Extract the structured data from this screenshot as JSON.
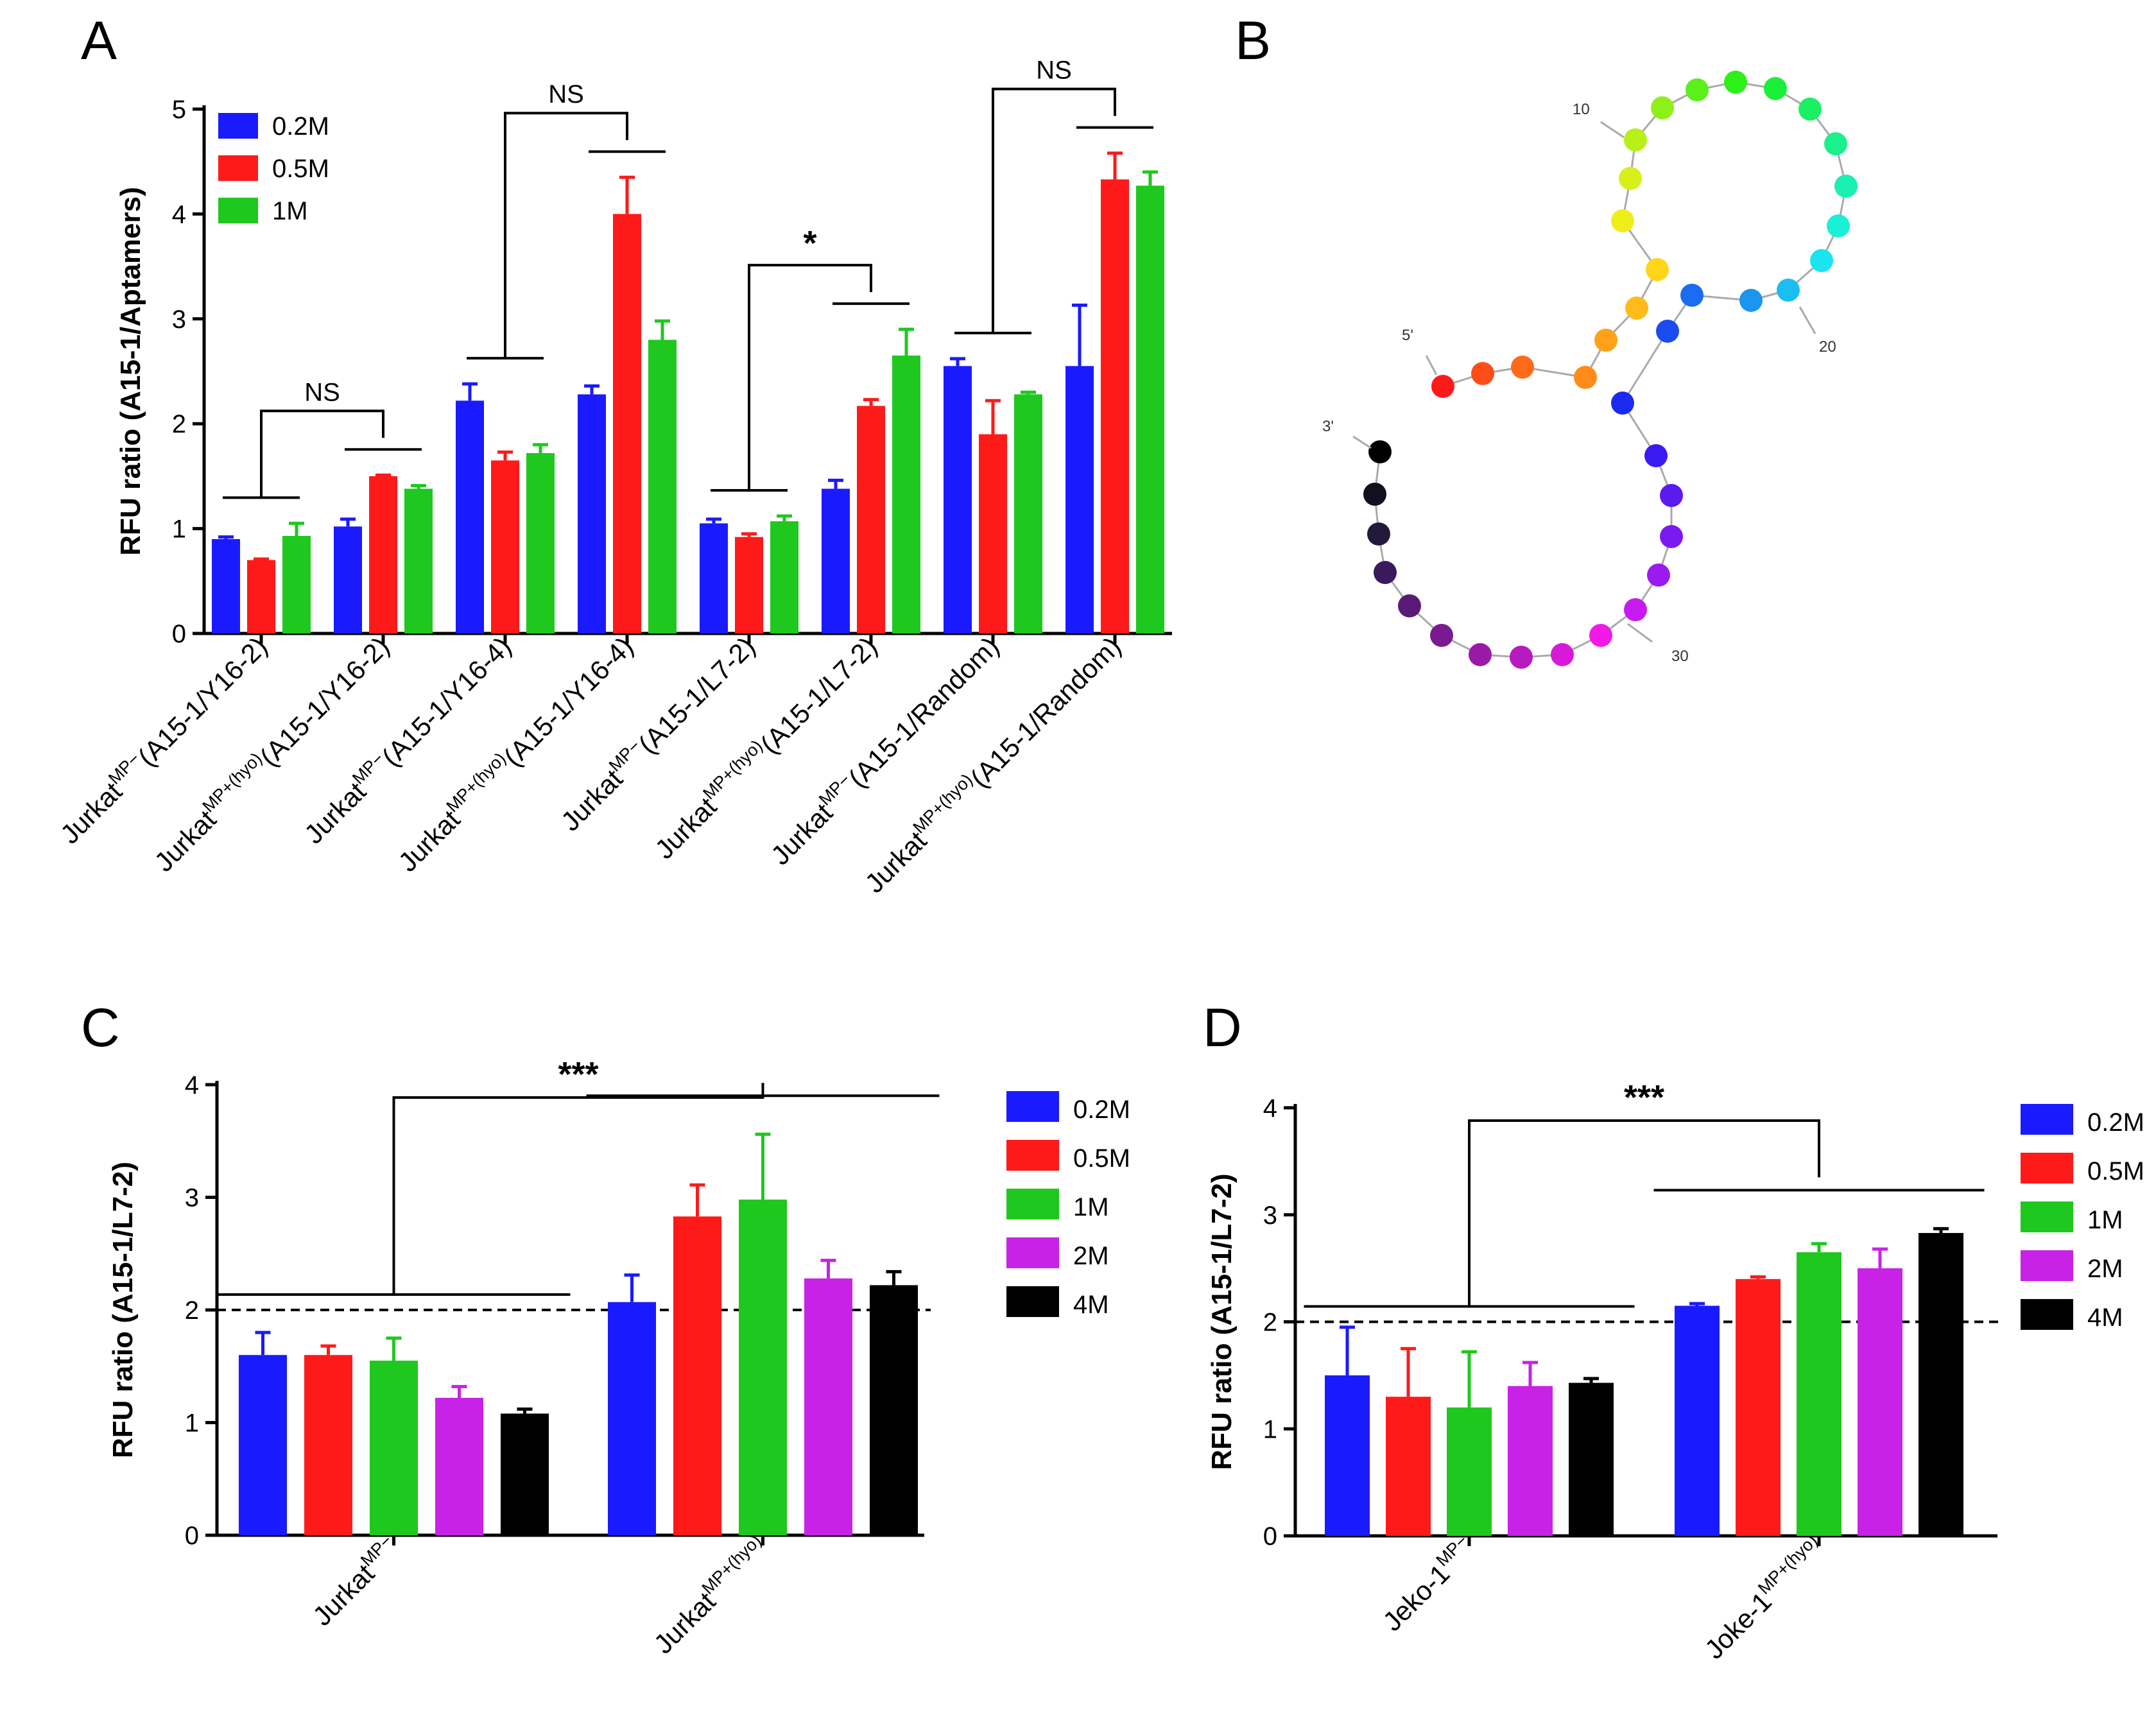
{
  "colors": {
    "blue": "#1a1aff",
    "red": "#ff1a1a",
    "green": "#1ec81e",
    "purple": "#c822e6",
    "black": "#000000"
  },
  "panels": {
    "A": {
      "letter": "A"
    },
    "B": {
      "letter": "B"
    },
    "C": {
      "letter": "C"
    },
    "D": {
      "letter": "D"
    }
  },
  "chart_data": [
    {
      "id": "A",
      "type": "bar",
      "ylabel": "RFU ratio (A15-1/Aptamers)",
      "ylim": [
        0,
        5
      ],
      "yticks": [
        0,
        1,
        2,
        3,
        4,
        5
      ],
      "legend": {
        "placement": "top-left"
      },
      "categories": [
        {
          "base": "Jurkat",
          "sup": "MP−",
          "suffix": "(A15-1/Y16-2)"
        },
        {
          "base": "Jurkat",
          "sup": "MP+(hyo)",
          "suffix": "(A15-1/Y16-2)"
        },
        {
          "base": "Jurkat",
          "sup": "MP−",
          "suffix": "(A15-1/Y16-4)"
        },
        {
          "base": "Jurkat",
          "sup": "MP+(hyo)",
          "suffix": "(A15-1/Y16-4)"
        },
        {
          "base": "Jurkat",
          "sup": "MP−",
          "suffix": "(A15-1/L7-2)"
        },
        {
          "base": "Jurkat",
          "sup": "MP+(hyo)",
          "suffix": "(A15-1/L7-2)"
        },
        {
          "base": "Jurkat",
          "sup": "MP−",
          "suffix": "(A15-1/Random)"
        },
        {
          "base": "Jurkat",
          "sup": "MP+(hyo)",
          "suffix": "(A15-1/Random)"
        }
      ],
      "series": [
        {
          "name": "0.2M",
          "color": "blue",
          "values": [
            0.9,
            1.02,
            2.22,
            2.28,
            1.05,
            1.38,
            2.55,
            2.55
          ],
          "errors": [
            0.02,
            0.07,
            0.16,
            0.08,
            0.04,
            0.08,
            0.07,
            0.58
          ]
        },
        {
          "name": "0.5M",
          "color": "red",
          "values": [
            0.7,
            1.5,
            1.65,
            4.0,
            0.92,
            2.17,
            1.9,
            4.33
          ],
          "errors": [
            0.01,
            0.01,
            0.08,
            0.35,
            0.03,
            0.06,
            0.32,
            0.25
          ]
        },
        {
          "name": "1M",
          "color": "green",
          "values": [
            0.93,
            1.38,
            1.72,
            2.8,
            1.07,
            2.65,
            2.28,
            4.27
          ],
          "errors": [
            0.12,
            0.03,
            0.08,
            0.18,
            0.05,
            0.25,
            0.02,
            0.13
          ]
        }
      ],
      "significance": [
        {
          "label": "NS",
          "groups": [
            0,
            1
          ]
        },
        {
          "label": "NS",
          "groups": [
            2,
            3
          ]
        },
        {
          "label": "*",
          "groups": [
            4,
            5
          ]
        },
        {
          "label": "NS",
          "groups": [
            6,
            7
          ]
        }
      ]
    },
    {
      "id": "C",
      "type": "bar",
      "ylabel": "RFU ratio (A15-1/L7-2)",
      "ylim": [
        0,
        4
      ],
      "yticks": [
        0,
        1,
        2,
        3,
        4
      ],
      "threshold": 2,
      "legend": {
        "placement": "right"
      },
      "categories": [
        {
          "base": "Jurkat",
          "sup": "MP−",
          "suffix": ""
        },
        {
          "base": "Jurkat",
          "sup": "MP+(hyo)",
          "suffix": ""
        }
      ],
      "series": [
        {
          "name": "0.2M",
          "color": "blue",
          "values": [
            1.6,
            2.07
          ],
          "errors": [
            0.2,
            0.24
          ]
        },
        {
          "name": "0.5M",
          "color": "red",
          "values": [
            1.6,
            2.83
          ],
          "errors": [
            0.08,
            0.28
          ]
        },
        {
          "name": "1M",
          "color": "green",
          "values": [
            1.55,
            2.98
          ],
          "errors": [
            0.2,
            0.58
          ]
        },
        {
          "name": "2M",
          "color": "purple",
          "values": [
            1.22,
            2.28
          ],
          "errors": [
            0.1,
            0.16
          ]
        },
        {
          "name": "4M",
          "color": "black",
          "values": [
            1.08,
            2.22
          ],
          "errors": [
            0.04,
            0.12
          ]
        }
      ],
      "significance": [
        {
          "label": "***",
          "groups": [
            0,
            1
          ]
        }
      ]
    },
    {
      "id": "D",
      "type": "bar",
      "ylabel": "RFU ratio (A15-1/L7-2)",
      "ylim": [
        0,
        4
      ],
      "yticks": [
        0,
        1,
        2,
        3,
        4
      ],
      "threshold": 2,
      "legend": {
        "placement": "right"
      },
      "categories": [
        {
          "base": "Jeko-1",
          "sup": "MP−",
          "suffix": ""
        },
        {
          "base": "Joke-1",
          "sup": "MP+(hyo)",
          "suffix": ""
        }
      ],
      "series": [
        {
          "name": "0.2M",
          "color": "blue",
          "values": [
            1.5,
            2.15
          ],
          "errors": [
            0.45,
            0.02
          ]
        },
        {
          "name": "0.5M",
          "color": "red",
          "values": [
            1.3,
            2.4
          ],
          "errors": [
            0.45,
            0.02
          ]
        },
        {
          "name": "1M",
          "color": "green",
          "values": [
            1.2,
            2.65
          ],
          "errors": [
            0.52,
            0.08
          ]
        },
        {
          "name": "2M",
          "color": "purple",
          "values": [
            1.4,
            2.5
          ],
          "errors": [
            0.22,
            0.18
          ]
        },
        {
          "name": "4M",
          "color": "black",
          "values": [
            1.43,
            2.83
          ],
          "errors": [
            0.04,
            0.04
          ]
        }
      ],
      "significance": [
        {
          "label": "***",
          "groups": [
            0,
            1
          ]
        }
      ]
    }
  ],
  "structure": {
    "labels": [
      "10",
      "20",
      "30",
      "5'",
      "3'"
    ]
  }
}
